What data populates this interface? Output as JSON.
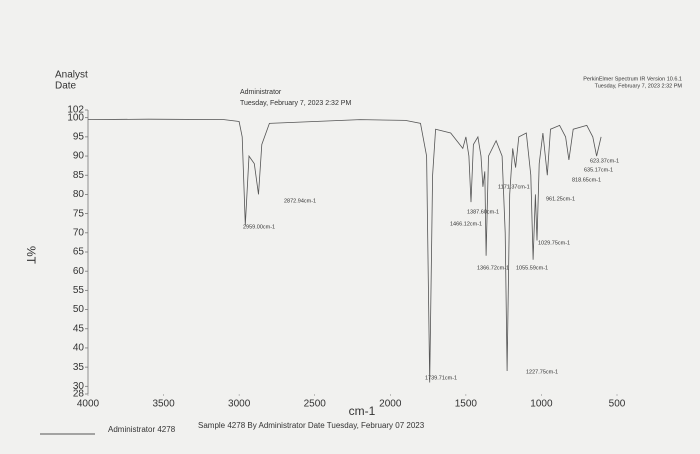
{
  "header": {
    "analyst_label": "Analyst",
    "date_label": "Date",
    "user": "Administrator",
    "datetime": "Tuesday, February 7, 2023 2:32 PM",
    "software": "PerkinElmer Spectrum IR Version 10.6.1",
    "software_datetime": "Tuesday, February 7, 2023 2:32 PM"
  },
  "footer": {
    "sample_id": "Administrator 4278",
    "description": "Sample 4278 By Administrator Date Tuesday, February 07 2023"
  },
  "chart_data": {
    "type": "line",
    "xlabel": "cm-1",
    "ylabel": "%T",
    "color": "#555555",
    "xlim": [
      4000,
      500
    ],
    "xticks": [
      4000,
      3500,
      3000,
      2500,
      2000,
      1500,
      1000,
      500
    ],
    "ylim": [
      28,
      102
    ],
    "yticks": [
      28,
      30,
      35,
      40,
      45,
      50,
      55,
      60,
      65,
      70,
      75,
      80,
      85,
      90,
      95,
      100,
      102
    ],
    "x": [
      4000,
      3600,
      3100,
      3000,
      2980,
      2959,
      2935,
      2900,
      2872,
      2850,
      2800,
      2200,
      1900,
      1800,
      1760,
      1739,
      1720,
      1700,
      1600,
      1520,
      1500,
      1480,
      1466,
      1450,
      1420,
      1400,
      1387,
      1375,
      1366,
      1350,
      1300,
      1260,
      1240,
      1227,
      1210,
      1190,
      1171,
      1150,
      1100,
      1070,
      1055,
      1040,
      1029,
      1015,
      990,
      961,
      940,
      880,
      840,
      818,
      790,
      700,
      660,
      635,
      623,
      605
    ],
    "values": [
      99.5,
      99.6,
      99.5,
      99,
      95,
      72,
      90,
      88,
      80,
      93,
      98.5,
      99.5,
      99.3,
      98.5,
      90,
      31,
      85,
      97,
      96,
      92,
      95,
      90,
      78,
      93,
      95,
      90,
      82,
      86,
      64,
      90,
      94,
      90,
      70,
      34,
      80,
      92,
      87,
      95,
      96,
      85,
      63,
      80,
      68,
      88,
      96,
      85,
      97,
      98,
      95,
      89,
      97,
      98,
      95,
      90,
      92,
      95
    ],
    "annotations": [
      "2959.00cm-1",
      "2872.94cm-1",
      "1739.71cm-1",
      "1466.12cm-1",
      "1387.60cm-1",
      "1366.72cm-1",
      "1227.75cm-1",
      "1171.37cm-1",
      "1055.59cm-1",
      "1029.75cm-1",
      "961.25cm-1",
      "818.65cm-1",
      "635.17cm-1",
      "623.37cm-1"
    ]
  }
}
